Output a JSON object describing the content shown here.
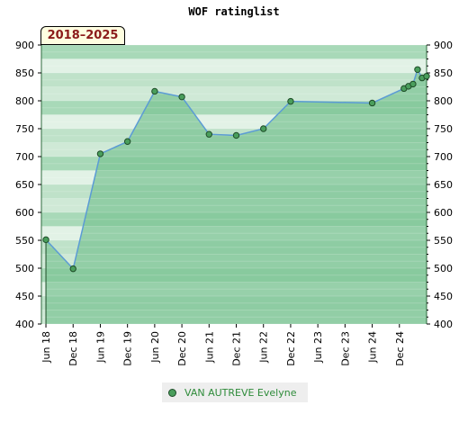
{
  "chart_data": {
    "type": "line",
    "title": "WOF ratinglist",
    "period_badge": "2018–2025",
    "ylim": [
      400,
      900
    ],
    "yticks": [
      400,
      450,
      500,
      550,
      600,
      650,
      700,
      750,
      800,
      850,
      900
    ],
    "xlim": [
      "2018-05",
      "2025-06"
    ],
    "xticks": [
      {
        "date": "2018-06",
        "label": "Jun 18"
      },
      {
        "date": "2018-12",
        "label": "Dec 18"
      },
      {
        "date": "2019-06",
        "label": "Jun 19"
      },
      {
        "date": "2019-12",
        "label": "Dec 19"
      },
      {
        "date": "2020-06",
        "label": "Jun 20"
      },
      {
        "date": "2020-12",
        "label": "Dec 20"
      },
      {
        "date": "2021-06",
        "label": "Jun 21"
      },
      {
        "date": "2021-12",
        "label": "Dec 21"
      },
      {
        "date": "2022-06",
        "label": "Jun 22"
      },
      {
        "date": "2022-12",
        "label": "Dec 22"
      },
      {
        "date": "2023-06",
        "label": "Jun 23"
      },
      {
        "date": "2023-12",
        "label": "Dec 23"
      },
      {
        "date": "2024-06",
        "label": "Jun 24"
      },
      {
        "date": "2024-12",
        "label": "Dec 24"
      }
    ],
    "grid": true,
    "legend_position": "bottom-center",
    "series": [
      {
        "name": "VAN AUTREVE Evelyne",
        "color": "#4a9e5c",
        "line_color": "#5b9bd5",
        "points": [
          {
            "x": "2018-06",
            "y": 551
          },
          {
            "x": "2018-12",
            "y": 499
          },
          {
            "x": "2019-06",
            "y": 705
          },
          {
            "x": "2019-12",
            "y": 727
          },
          {
            "x": "2020-06",
            "y": 817
          },
          {
            "x": "2020-12",
            "y": 807
          },
          {
            "x": "2021-06",
            "y": 740
          },
          {
            "x": "2021-12",
            "y": 738
          },
          {
            "x": "2022-06",
            "y": 750
          },
          {
            "x": "2022-12",
            "y": 799
          },
          {
            "x": "2024-06",
            "y": 796
          },
          {
            "x": "2025-01",
            "y": 822
          },
          {
            "x": "2025-02",
            "y": 826
          },
          {
            "x": "2025-03",
            "y": 830
          },
          {
            "x": "2025-04",
            "y": 856
          },
          {
            "x": "2025-05",
            "y": 841
          },
          {
            "x": "2025-06",
            "y": 844
          }
        ]
      }
    ]
  }
}
